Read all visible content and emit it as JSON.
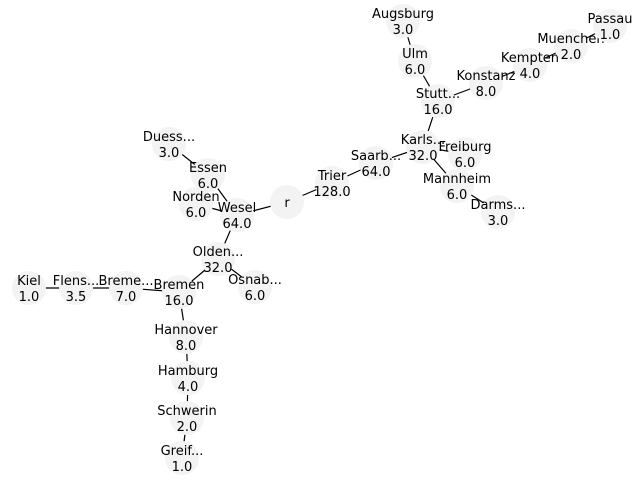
{
  "graph": {
    "nodes": [
      {
        "id": "r",
        "label": "r",
        "value": ""
      },
      {
        "id": "trier",
        "label": "Trier",
        "value": "128.0"
      },
      {
        "id": "saarb",
        "label": "Saarb...",
        "value": "64.0"
      },
      {
        "id": "karls",
        "label": "Karls...",
        "value": "32.0"
      },
      {
        "id": "stutt",
        "label": "Stutt...",
        "value": "16.0"
      },
      {
        "id": "ulm",
        "label": "Ulm",
        "value": "6.0"
      },
      {
        "id": "augsburg",
        "label": "Augsburg",
        "value": "3.0"
      },
      {
        "id": "konstanz",
        "label": "Konstanz",
        "value": "8.0"
      },
      {
        "id": "kempten",
        "label": "Kempten",
        "value": "4.0"
      },
      {
        "id": "muenchen",
        "label": "Muenchen",
        "value": "2.0"
      },
      {
        "id": "passau",
        "label": "Passau",
        "value": "1.0"
      },
      {
        "id": "freiburg",
        "label": "Freiburg",
        "value": "6.0"
      },
      {
        "id": "mannheim",
        "label": "Mannheim",
        "value": "6.0"
      },
      {
        "id": "darms",
        "label": "Darms...",
        "value": "3.0"
      },
      {
        "id": "wesel",
        "label": "Wesel",
        "value": "64.0"
      },
      {
        "id": "essen",
        "label": "Essen",
        "value": "6.0"
      },
      {
        "id": "duess",
        "label": "Duess...",
        "value": "3.0"
      },
      {
        "id": "norden",
        "label": "Norden",
        "value": "6.0"
      },
      {
        "id": "olden",
        "label": "Olden...",
        "value": "32.0"
      },
      {
        "id": "osnab",
        "label": "Osnab...",
        "value": "6.0"
      },
      {
        "id": "bremen",
        "label": "Bremen",
        "value": "16.0"
      },
      {
        "id": "breme2",
        "label": "Breme...",
        "value": "7.0"
      },
      {
        "id": "flens",
        "label": "Flens...",
        "value": "3.5"
      },
      {
        "id": "kiel",
        "label": "Kiel",
        "value": "1.0"
      },
      {
        "id": "hannover",
        "label": "Hannover",
        "value": "8.0"
      },
      {
        "id": "hamburg",
        "label": "Hamburg",
        "value": "4.0"
      },
      {
        "id": "schwerin",
        "label": "Schwerin",
        "value": "2.0"
      },
      {
        "id": "greif",
        "label": "Greif...",
        "value": "1.0"
      }
    ],
    "edges": [
      [
        "r",
        "trier"
      ],
      [
        "trier",
        "saarb"
      ],
      [
        "saarb",
        "karls"
      ],
      [
        "karls",
        "stutt"
      ],
      [
        "stutt",
        "ulm"
      ],
      [
        "ulm",
        "augsburg"
      ],
      [
        "stutt",
        "konstanz"
      ],
      [
        "konstanz",
        "kempten"
      ],
      [
        "kempten",
        "muenchen"
      ],
      [
        "muenchen",
        "passau"
      ],
      [
        "karls",
        "freiburg"
      ],
      [
        "karls",
        "mannheim"
      ],
      [
        "mannheim",
        "darms"
      ],
      [
        "r",
        "wesel"
      ],
      [
        "wesel",
        "essen"
      ],
      [
        "essen",
        "duess"
      ],
      [
        "wesel",
        "norden"
      ],
      [
        "wesel",
        "olden"
      ],
      [
        "olden",
        "osnab"
      ],
      [
        "olden",
        "bremen"
      ],
      [
        "bremen",
        "breme2"
      ],
      [
        "breme2",
        "flens"
      ],
      [
        "flens",
        "kiel"
      ],
      [
        "bremen",
        "hannover"
      ],
      [
        "hannover",
        "hamburg"
      ],
      [
        "hamburg",
        "schwerin"
      ],
      [
        "schwerin",
        "greif"
      ]
    ]
  }
}
